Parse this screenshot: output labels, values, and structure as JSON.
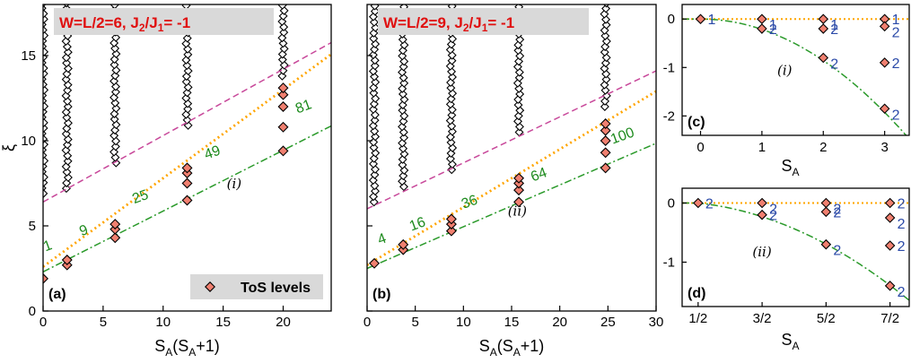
{
  "chart_data": [
    {
      "panel": "(a)",
      "type": "scatter",
      "title": "W=L/2=6, J2/J1= -1",
      "title_parts": {
        "main": "W=L/2=6, J",
        "sub1": "2",
        "mid": "/J",
        "sub2": "1",
        "end": "= -1"
      },
      "xlabel": "S_A(S_A+1)",
      "ylabel": "ξ",
      "xlim": [
        0,
        24
      ],
      "ylim": [
        0,
        18
      ],
      "xticks": [
        "0",
        "5",
        "10",
        "15",
        "20"
      ],
      "yticks": [
        "0",
        "5",
        "10",
        "15"
      ],
      "legend": {
        "label": "ToS levels",
        "position": "bottom-right"
      },
      "annotation": "(i)",
      "tos_points": [
        {
          "x": 0,
          "y": 1.9
        },
        {
          "x": 2,
          "y": 2.7
        },
        {
          "x": 2,
          "y": 3.0
        },
        {
          "x": 6,
          "y": 4.3
        },
        {
          "x": 6,
          "y": 4.8
        },
        {
          "x": 6,
          "y": 5.1
        },
        {
          "x": 12,
          "y": 6.5
        },
        {
          "x": 12,
          "y": 7.5
        },
        {
          "x": 12,
          "y": 8.1
        },
        {
          "x": 12,
          "y": 8.4
        },
        {
          "x": 20,
          "y": 9.4
        },
        {
          "x": 20,
          "y": 10.8
        },
        {
          "x": 20,
          "y": 12.0
        },
        {
          "x": 20,
          "y": 12.7
        },
        {
          "x": 20,
          "y": 13.1
        }
      ],
      "tower_columns": [
        {
          "x": 0,
          "ymin": 6.9,
          "ymax": 18
        },
        {
          "x": 2,
          "ymin": 7.2,
          "ymax": 18
        },
        {
          "x": 6,
          "ymin": 8.7,
          "ymax": 18
        },
        {
          "x": 12,
          "ymin": 10.9,
          "ymax": 18
        },
        {
          "x": 20,
          "ymin": 13.8,
          "ymax": 18
        }
      ],
      "lines": [
        {
          "style": "dash-dot",
          "color": "#2a9a2a",
          "y_at_x0": 2.3,
          "slope": 0.357
        },
        {
          "style": "dotted",
          "color": "#ffa500",
          "y_at_x0": 2.6,
          "slope": 0.52
        },
        {
          "style": "dashed",
          "color": "#c8489a",
          "y_at_x0": 6.4,
          "slope": 0.39
        }
      ],
      "degeneracy_labels": [
        {
          "text": "1",
          "x": 0.2,
          "y": 3.5
        },
        {
          "text": "9",
          "x": 3.2,
          "y": 4.4
        },
        {
          "text": "25",
          "x": 7.6,
          "y": 6.3
        },
        {
          "text": "49",
          "x": 13.6,
          "y": 8.9
        },
        {
          "text": "81",
          "x": 21.2,
          "y": 11.6
        }
      ]
    },
    {
      "panel": "(b)",
      "type": "scatter",
      "title": "W=L/2=9, J2/J1= -1",
      "title_parts": {
        "main": "W=L/2=9, J",
        "sub1": "2",
        "mid": "/J",
        "sub2": "1",
        "end": "= -1"
      },
      "xlabel": "S_A(S_A+1)",
      "xlim": [
        0,
        30
      ],
      "ylim": [
        0,
        18
      ],
      "xticks": [
        "0",
        "5",
        "10",
        "15",
        "20",
        "25",
        "30"
      ],
      "annotation": "(ii)",
      "tos_points": [
        {
          "x": 0.75,
          "y": 2.8
        },
        {
          "x": 3.75,
          "y": 3.6
        },
        {
          "x": 3.75,
          "y": 3.9
        },
        {
          "x": 8.75,
          "y": 4.7
        },
        {
          "x": 8.75,
          "y": 5.1
        },
        {
          "x": 8.75,
          "y": 5.4
        },
        {
          "x": 15.75,
          "y": 6.4
        },
        {
          "x": 15.75,
          "y": 7.1
        },
        {
          "x": 15.75,
          "y": 7.5
        },
        {
          "x": 15.75,
          "y": 7.8
        },
        {
          "x": 24.75,
          "y": 8.4
        },
        {
          "x": 24.75,
          "y": 9.3
        },
        {
          "x": 24.75,
          "y": 10.0
        },
        {
          "x": 24.75,
          "y": 10.6
        },
        {
          "x": 24.75,
          "y": 11.0
        }
      ],
      "tower_columns": [
        {
          "x": 0.75,
          "ymin": 6.4,
          "ymax": 18
        },
        {
          "x": 3.75,
          "ymin": 7.3,
          "ymax": 18
        },
        {
          "x": 8.75,
          "ymin": 8.3,
          "ymax": 18
        },
        {
          "x": 15.75,
          "ymin": 10.5,
          "ymax": 18
        },
        {
          "x": 24.75,
          "ymin": 12.0,
          "ymax": 18
        }
      ],
      "lines": [
        {
          "style": "dash-dot",
          "color": "#2a9a2a",
          "y_at_x0": 2.5,
          "slope": 0.245
        },
        {
          "style": "dotted",
          "color": "#ffa500",
          "y_at_x0": 2.7,
          "slope": 0.34
        },
        {
          "style": "dashed",
          "color": "#c8489a",
          "y_at_x0": 6.0,
          "slope": 0.27
        }
      ],
      "degeneracy_labels": [
        {
          "text": "4",
          "x": 1.3,
          "y": 3.9
        },
        {
          "text": "16",
          "x": 4.6,
          "y": 4.7
        },
        {
          "text": "36",
          "x": 10.0,
          "y": 6.0
        },
        {
          "text": "64",
          "x": 17.2,
          "y": 7.6
        },
        {
          "text": "100",
          "x": 25.5,
          "y": 9.8
        }
      ]
    },
    {
      "panel": "(c)",
      "type": "scatter",
      "xlabel": "S_A",
      "xlim": [
        -0.3,
        3.4
      ],
      "ylim": [
        -2.4,
        0.3
      ],
      "xticks": [
        "0",
        "1",
        "2",
        "3"
      ],
      "yticks": [
        "0",
        "-1",
        "-2"
      ],
      "annotation": "(i)",
      "points": [
        {
          "x": 0,
          "y": 0.0,
          "label": "1"
        },
        {
          "x": 1,
          "y": 0.0,
          "label": "1"
        },
        {
          "x": 1,
          "y": -0.2,
          "label": "2"
        },
        {
          "x": 2,
          "y": 0.0,
          "label": "1"
        },
        {
          "x": 2,
          "y": -0.2,
          "label": "2"
        },
        {
          "x": 2,
          "y": -0.8,
          "label": "2"
        },
        {
          "x": 3,
          "y": 0.0,
          "label": "1"
        },
        {
          "x": 3,
          "y": -0.15,
          "label": "2"
        },
        {
          "x": 3,
          "y": -0.9,
          "label": "2"
        },
        {
          "x": 3,
          "y": -1.85,
          "label": "2"
        }
      ],
      "curve_a": -0.214
    },
    {
      "panel": "(d)",
      "type": "scatter",
      "xlabel": "S_A",
      "xlim": [
        0.25,
        3.8
      ],
      "ylim": [
        -1.75,
        0.25
      ],
      "xticks": [
        "1/2",
        "3/2",
        "5/2",
        "7/2"
      ],
      "yticks": [
        "0",
        "-1"
      ],
      "annotation": "(ii)",
      "points": [
        {
          "x": 0.5,
          "y": 0.0,
          "label": "2"
        },
        {
          "x": 1.5,
          "y": 0.0,
          "label": "2"
        },
        {
          "x": 1.5,
          "y": -0.2,
          "label": "2"
        },
        {
          "x": 2.5,
          "y": 0.0,
          "label": "2"
        },
        {
          "x": 2.5,
          "y": -0.15,
          "label": "2"
        },
        {
          "x": 2.5,
          "y": -0.7,
          "label": "2"
        },
        {
          "x": 3.5,
          "y": 0.0,
          "label": "2"
        },
        {
          "x": 3.5,
          "y": -0.25,
          "label": "2"
        },
        {
          "x": 3.5,
          "y": -0.72,
          "label": "2"
        },
        {
          "x": 3.5,
          "y": -1.4,
          "label": "2"
        }
      ],
      "curve_a": -0.116
    }
  ],
  "colors": {
    "tos_fill": "#f08070",
    "green": "#2a9a2a",
    "orange": "#ffa500",
    "magenta": "#c8489a",
    "blue": "#2b4aa8",
    "title": "#e01010"
  }
}
